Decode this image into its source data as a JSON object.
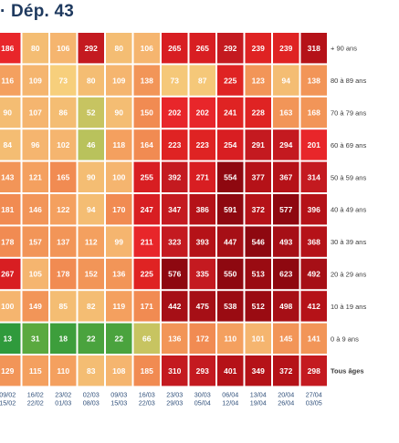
{
  "title": "· Dép. 43",
  "footnote": "",
  "chart_data": {
    "type": "heatmap",
    "title": "· Dép. 43",
    "rows": [
      "+ 90 ans",
      "80 à 89 ans",
      "70 à 79 ans",
      "60 à 69 ans",
      "50 à 59 ans",
      "40 à 49 ans",
      "30 à 39 ans",
      "20 à 29 ans",
      "10 à 19 ans",
      "0 à 9 ans",
      "Tous âges"
    ],
    "columns": [
      {
        "start": "09/02",
        "end": "15/02"
      },
      {
        "start": "16/02",
        "end": "22/02"
      },
      {
        "start": "23/02",
        "end": "01/03"
      },
      {
        "start": "02/03",
        "end": "08/03"
      },
      {
        "start": "09/03",
        "end": "15/03"
      },
      {
        "start": "16/03",
        "end": "22/03"
      },
      {
        "start": "23/03",
        "end": "29/03"
      },
      {
        "start": "30/03",
        "end": "05/04"
      },
      {
        "start": "06/04",
        "end": "12/04"
      },
      {
        "start": "13/04",
        "end": "19/04"
      },
      {
        "start": "20/04",
        "end": "26/04"
      },
      {
        "start": "27/04",
        "end": "03/05"
      }
    ],
    "values": [
      [
        186,
        80,
        106,
        292,
        80,
        106,
        265,
        265,
        292,
        239,
        239,
        318
      ],
      [
        116,
        109,
        73,
        80,
        109,
        138,
        73,
        87,
        225,
        123,
        94,
        138
      ],
      [
        90,
        107,
        86,
        52,
        90,
        150,
        202,
        202,
        241,
        228,
        163,
        168
      ],
      [
        84,
        96,
        102,
        46,
        118,
        164,
        223,
        223,
        254,
        291,
        294,
        201
      ],
      [
        143,
        121,
        165,
        90,
        100,
        255,
        392,
        271,
        554,
        377,
        367,
        314
      ],
      [
        181,
        146,
        122,
        94,
        170,
        247,
        347,
        386,
        591,
        372,
        577,
        396
      ],
      [
        178,
        157,
        137,
        112,
        99,
        211,
        323,
        393,
        447,
        546,
        493,
        368
      ],
      [
        267,
        105,
        178,
        152,
        136,
        225,
        576,
        335,
        550,
        513,
        623,
        492
      ],
      [
        100,
        149,
        85,
        82,
        119,
        171,
        442,
        475,
        538,
        512,
        498,
        412
      ],
      [
        13,
        31,
        18,
        22,
        22,
        66,
        136,
        172,
        110,
        101,
        145,
        141
      ],
      [
        129,
        115,
        110,
        83,
        108,
        185,
        310,
        293,
        401,
        349,
        372,
        298
      ]
    ],
    "colors": {
      "row": [
        [
          "#e8262a",
          "#f4bd73",
          "#f5b56f",
          "#c41a20",
          "#f4bd73",
          "#f5b56f",
          "#d81e22",
          "#d81e22",
          "#c41a20",
          "#df2323",
          "#df2323",
          "#b51218"
        ],
        [
          "#f4a05f",
          "#f5b56f",
          "#f7cf7c",
          "#f4bd73",
          "#f5b56f",
          "#f29558",
          "#f5c879",
          "#f5c879",
          "#df2323",
          "#f29558",
          "#f4bd73",
          "#f29558"
        ],
        [
          "#f4bd73",
          "#f5b56f",
          "#f4bd73",
          "#c7c461",
          "#f4bd73",
          "#f18b52",
          "#e8262a",
          "#e8262a",
          "#df2323",
          "#df2323",
          "#f29558",
          "#f29558"
        ],
        [
          "#f4bd73",
          "#f5b56f",
          "#f5b56f",
          "#b9c25c",
          "#f4a05f",
          "#f18b52",
          "#df2323",
          "#df2323",
          "#d81e22",
          "#c41a20",
          "#c41a20",
          "#e8262a"
        ],
        [
          "#f29558",
          "#f4a05f",
          "#f18b52",
          "#f4bd73",
          "#f5b56f",
          "#d81e22",
          "#c41a20",
          "#d81e22",
          "#8e0810",
          "#b51218",
          "#b51218",
          "#c41a20"
        ],
        [
          "#f18b52",
          "#f29558",
          "#f4a05f",
          "#f4bd73",
          "#f18b52",
          "#d81e22",
          "#c41a20",
          "#b51218",
          "#8e0810",
          "#b51218",
          "#8e0810",
          "#b51218"
        ],
        [
          "#f18b52",
          "#f29558",
          "#f29558",
          "#f4a05f",
          "#f5b56f",
          "#e8262a",
          "#c41a20",
          "#b51218",
          "#a60f16",
          "#8e0810",
          "#a60f16",
          "#b51218"
        ],
        [
          "#d81e22",
          "#f5b56f",
          "#f18b52",
          "#f29558",
          "#f29558",
          "#df2323",
          "#8e0810",
          "#c41a20",
          "#8e0810",
          "#9a0b12",
          "#8e0810",
          "#a60f16"
        ],
        [
          "#f5b56f",
          "#f29558",
          "#f4bd73",
          "#f4bd73",
          "#f4a05f",
          "#f18b52",
          "#a60f16",
          "#a60f16",
          "#9a0b12",
          "#9a0b12",
          "#a60f16",
          "#b51218"
        ],
        [
          "#2f9a3c",
          "#5aa93f",
          "#3d9e3c",
          "#4aa33e",
          "#4aa33e",
          "#c7c461",
          "#f29558",
          "#f18b52",
          "#f4a05f",
          "#f5b56f",
          "#f29558",
          "#f29558"
        ],
        [
          "#f29558",
          "#f4a05f",
          "#f4a05f",
          "#f4bd73",
          "#f5b56f",
          "#f18b52",
          "#c41a20",
          "#c41a20",
          "#b51218",
          "#b51218",
          "#b51218",
          "#c41a20"
        ]
      ]
    }
  }
}
